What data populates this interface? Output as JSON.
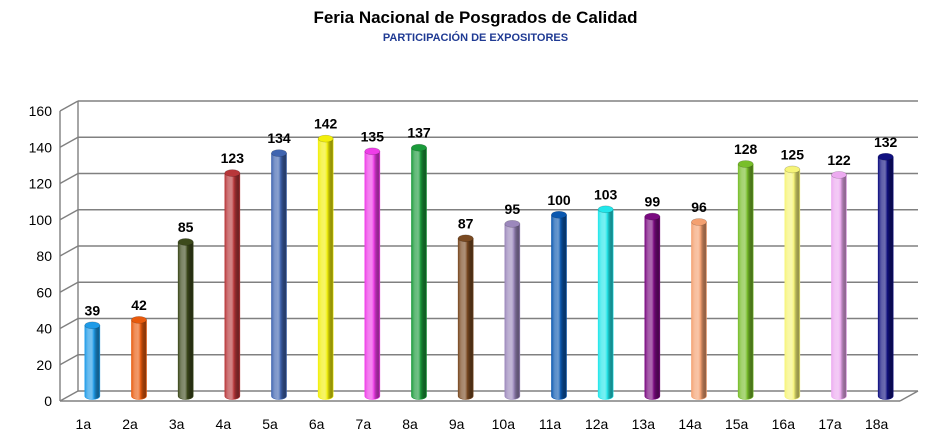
{
  "chart_data": {
    "type": "bar",
    "title": "Feria Nacional de Posgrados de Calidad",
    "subtitle": "PARTICIPACIÓN DE EXPOSITORES",
    "xlabel": "",
    "ylabel": "",
    "ylim": [
      0,
      160
    ],
    "yticks": [
      0,
      20,
      40,
      60,
      80,
      100,
      120,
      140,
      160
    ],
    "grid": true,
    "legend": "none",
    "categories": [
      "1a",
      "2a",
      "3a",
      "4a",
      "5a",
      "6a",
      "7a",
      "8a",
      "9a",
      "10a",
      "11a",
      "12a",
      "13a",
      "14a",
      "15a",
      "16a",
      "17a",
      "18a"
    ],
    "values": [
      39,
      42,
      85,
      123,
      134,
      142,
      135,
      137,
      87,
      95,
      100,
      103,
      99,
      96,
      128,
      125,
      122,
      132
    ],
    "colors": [
      "#1e9be8",
      "#e85a0c",
      "#3d4a1c",
      "#b8373a",
      "#3f64b0",
      "#f2ef0a",
      "#ee3de8",
      "#1a9a3a",
      "#7a4a22",
      "#9c88bc",
      "#0a58b0",
      "#22e6ea",
      "#7a0a80",
      "#f4a070",
      "#78be2a",
      "#f6f478",
      "#ecaaf0",
      "#101080"
    ]
  }
}
